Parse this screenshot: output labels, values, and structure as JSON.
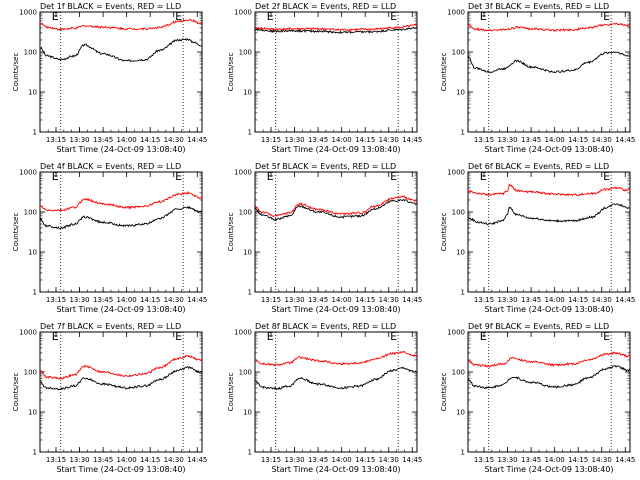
{
  "chart_data": [
    {
      "type": "line",
      "title": "Det 1f BLACK = Events, RED = LLD",
      "xlabel": "Start Time (24-Oct-09 13:08:40)",
      "ylabel": "Counts/sec",
      "yscale": "log",
      "ylim": [
        1,
        1000
      ],
      "xlim": [
        13.08,
        14.8
      ],
      "x_ticks": [
        "13:15",
        "13:30",
        "13:45",
        "14:00",
        "14:15",
        "14:30",
        "14:45"
      ],
      "y_ticks": [
        "1",
        "10",
        "100",
        "1000"
      ],
      "markers": [
        {
          "label": "E",
          "x": 13.3
        },
        {
          "label": "E",
          "x": 14.6
        }
      ],
      "series": [
        {
          "color": "#000000",
          "x": [
            13.08,
            13.15,
            13.3,
            13.45,
            13.55,
            13.75,
            14.0,
            14.2,
            14.35,
            14.55,
            14.65,
            14.7,
            14.78
          ],
          "values": [
            130,
            80,
            65,
            80,
            150,
            90,
            60,
            65,
            110,
            200,
            210,
            180,
            150
          ]
        },
        {
          "color": "#ff0000",
          "x": [
            13.08,
            13.15,
            13.3,
            13.45,
            13.55,
            13.75,
            14.0,
            14.2,
            14.35,
            14.55,
            14.65,
            14.7,
            14.78
          ],
          "values": [
            530,
            420,
            370,
            390,
            450,
            420,
            380,
            380,
            410,
            580,
            640,
            610,
            520
          ]
        }
      ]
    },
    {
      "type": "line",
      "title": "Det 2f BLACK = Events, RED = LLD",
      "xlabel": "Start Time (24-Oct-09 13:08:40)",
      "ylabel": "Counts/sec",
      "yscale": "log",
      "ylim": [
        1,
        1000
      ],
      "xlim": [
        13.08,
        14.8
      ],
      "x_ticks": [
        "13:15",
        "13:30",
        "13:45",
        "14:00",
        "14:15",
        "14:30",
        "14:45"
      ],
      "y_ticks": [
        "1",
        "10",
        "100",
        "1000"
      ],
      "markers": [
        {
          "label": "E",
          "x": 13.3
        },
        {
          "label": "E",
          "x": 14.6
        }
      ],
      "series": [
        {
          "color": "#000000",
          "x": [
            13.08,
            13.3,
            13.5,
            13.75,
            14.0,
            14.3,
            14.6,
            14.78
          ],
          "values": [
            370,
            330,
            340,
            330,
            310,
            320,
            360,
            400
          ]
        },
        {
          "color": "#ff0000",
          "x": [
            13.08,
            13.3,
            13.5,
            13.75,
            14.0,
            14.3,
            14.6,
            14.78
          ],
          "values": [
            400,
            370,
            380,
            380,
            360,
            370,
            410,
            460
          ]
        }
      ]
    },
    {
      "type": "line",
      "title": "Det 3f BLACK = Events, RED = LLD",
      "xlabel": "Start Time (24-Oct-09 13:08:40)",
      "ylabel": "Counts/sec",
      "yscale": "log",
      "ylim": [
        1,
        1000
      ],
      "xlim": [
        13.08,
        14.8
      ],
      "x_ticks": [
        "13:15",
        "13:30",
        "13:45",
        "14:00",
        "14:15",
        "14:30",
        "14:45"
      ],
      "y_ticks": [
        "1",
        "10",
        "100",
        "1000"
      ],
      "markers": [
        {
          "label": "E",
          "x": 13.3
        },
        {
          "label": "E",
          "x": 14.6
        }
      ],
      "series": [
        {
          "color": "#000000",
          "x": [
            13.08,
            13.15,
            13.3,
            13.45,
            13.6,
            13.75,
            14.0,
            14.2,
            14.35,
            14.55,
            14.65,
            14.78
          ],
          "values": [
            80,
            40,
            32,
            38,
            60,
            42,
            32,
            35,
            55,
            95,
            100,
            80
          ]
        },
        {
          "color": "#ff0000",
          "x": [
            13.08,
            13.15,
            13.3,
            13.45,
            13.6,
            13.75,
            14.0,
            14.2,
            14.35,
            14.55,
            14.65,
            14.78
          ],
          "values": [
            470,
            370,
            350,
            360,
            410,
            380,
            350,
            360,
            400,
            480,
            520,
            460
          ]
        }
      ]
    },
    {
      "type": "line",
      "title": "Det 4f BLACK = Events, RED = LLD",
      "xlabel": "Start Time (24-Oct-09 13:08:40)",
      "ylabel": "Counts/sec",
      "yscale": "log",
      "ylim": [
        1,
        1000
      ],
      "xlim": [
        13.08,
        14.8
      ],
      "x_ticks": [
        "13:15",
        "13:30",
        "13:45",
        "14:00",
        "14:15",
        "14:30",
        "14:45"
      ],
      "y_ticks": [
        "1",
        "10",
        "100",
        "1000"
      ],
      "markers": [
        {
          "label": "E",
          "x": 13.3
        },
        {
          "label": "E",
          "x": 14.6
        }
      ],
      "series": [
        {
          "color": "#000000",
          "x": [
            13.08,
            13.15,
            13.3,
            13.45,
            13.55,
            13.75,
            14.0,
            14.2,
            14.35,
            14.55,
            14.65,
            14.78
          ],
          "values": [
            65,
            45,
            40,
            50,
            75,
            55,
            45,
            50,
            70,
            120,
            130,
            100
          ]
        },
        {
          "color": "#ff0000",
          "x": [
            13.08,
            13.15,
            13.3,
            13.45,
            13.55,
            13.75,
            14.0,
            14.2,
            14.35,
            14.55,
            14.65,
            14.78
          ],
          "values": [
            140,
            110,
            110,
            130,
            210,
            160,
            130,
            140,
            180,
            280,
            300,
            230
          ]
        }
      ]
    },
    {
      "type": "line",
      "title": "Det 5f BLACK = Events, RED = LLD",
      "xlabel": "Start Time (24-Oct-09 13:08:40)",
      "ylabel": "Counts/sec",
      "yscale": "log",
      "ylim": [
        1,
        1000
      ],
      "xlim": [
        13.08,
        14.8
      ],
      "x_ticks": [
        "13:15",
        "13:30",
        "13:45",
        "14:00",
        "14:15",
        "14:30",
        "14:45"
      ],
      "y_ticks": [
        "1",
        "10",
        "100",
        "1000"
      ],
      "markers": [
        {
          "label": "E",
          "x": 13.3
        },
        {
          "label": "E",
          "x": 14.6
        }
      ],
      "series": [
        {
          "color": "#000000",
          "x": [
            13.08,
            13.15,
            13.3,
            13.45,
            13.55,
            13.75,
            14.0,
            14.2,
            14.35,
            14.55,
            14.65,
            14.78
          ],
          "values": [
            120,
            85,
            65,
            80,
            140,
            100,
            75,
            80,
            120,
            190,
            200,
            160
          ]
        },
        {
          "color": "#ff0000",
          "x": [
            13.08,
            13.15,
            13.3,
            13.45,
            13.55,
            13.75,
            14.0,
            14.2,
            14.35,
            14.55,
            14.65,
            14.78
          ],
          "values": [
            140,
            100,
            80,
            95,
            160,
            115,
            90,
            95,
            140,
            220,
            240,
            190
          ]
        }
      ]
    },
    {
      "type": "line",
      "title": "Det 6f BLACK = Events, RED = LLD",
      "xlabel": "Start Time (24-Oct-09 13:08:40)",
      "ylabel": "Counts/sec",
      "yscale": "log",
      "ylim": [
        1,
        1000
      ],
      "xlim": [
        13.08,
        14.8
      ],
      "x_ticks": [
        "13:15",
        "13:30",
        "13:45",
        "14:00",
        "14:15",
        "14:30",
        "14:45"
      ],
      "y_ticks": [
        "1",
        "10",
        "100",
        "1000"
      ],
      "markers": [
        {
          "label": "E",
          "x": 13.3
        },
        {
          "label": "E",
          "x": 14.6
        }
      ],
      "series": [
        {
          "color": "#000000",
          "x": [
            13.08,
            13.2,
            13.3,
            13.45,
            13.5,
            13.52,
            13.6,
            13.75,
            14.0,
            14.2,
            14.4,
            14.55,
            14.65,
            14.78
          ],
          "values": [
            70,
            55,
            50,
            60,
            90,
            130,
            85,
            70,
            60,
            60,
            75,
            130,
            160,
            130
          ]
        },
        {
          "color": "#ff0000",
          "x": [
            13.08,
            13.2,
            13.3,
            13.45,
            13.5,
            13.52,
            13.6,
            13.75,
            14.0,
            14.2,
            14.4,
            14.55,
            14.65,
            14.78
          ],
          "values": [
            330,
            290,
            270,
            290,
            340,
            480,
            340,
            320,
            280,
            270,
            290,
            370,
            400,
            350
          ]
        }
      ]
    },
    {
      "type": "line",
      "title": "Det 7f BLACK = Events, RED = LLD",
      "xlabel": "Start Time (24-Oct-09 13:08:40)",
      "ylabel": "Counts/sec",
      "yscale": "log",
      "ylim": [
        1,
        1000
      ],
      "xlim": [
        13.08,
        14.8
      ],
      "x_ticks": [
        "13:15",
        "13:30",
        "13:45",
        "14:00",
        "14:15",
        "14:30",
        "14:45"
      ],
      "y_ticks": [
        "1",
        "10",
        "100",
        "1000"
      ],
      "markers": [
        {
          "label": "E",
          "x": 13.3
        },
        {
          "label": "E",
          "x": 14.6
        }
      ],
      "series": [
        {
          "color": "#000000",
          "x": [
            13.08,
            13.15,
            13.3,
            13.45,
            13.55,
            13.75,
            14.0,
            14.2,
            14.35,
            14.55,
            14.65,
            14.78
          ],
          "values": [
            55,
            40,
            38,
            45,
            70,
            50,
            40,
            45,
            65,
            110,
            130,
            100
          ]
        },
        {
          "color": "#ff0000",
          "x": [
            13.08,
            13.15,
            13.3,
            13.45,
            13.55,
            13.75,
            14.0,
            14.2,
            14.35,
            14.55,
            14.65,
            14.78
          ],
          "values": [
            110,
            75,
            70,
            85,
            140,
            100,
            80,
            90,
            130,
            220,
            250,
            200
          ]
        }
      ]
    },
    {
      "type": "line",
      "title": "Det 8f BLACK = Events, RED = LLD",
      "xlabel": "Start Time (24-Oct-09 13:08:40)",
      "ylabel": "Counts/sec",
      "yscale": "log",
      "ylim": [
        1,
        1000
      ],
      "xlim": [
        13.08,
        14.8
      ],
      "x_ticks": [
        "13:15",
        "13:30",
        "13:45",
        "14:00",
        "14:15",
        "14:30",
        "14:45"
      ],
      "y_ticks": [
        "1",
        "10",
        "100",
        "1000"
      ],
      "markers": [
        {
          "label": "E",
          "x": 13.3
        },
        {
          "label": "E",
          "x": 14.6
        }
      ],
      "series": [
        {
          "color": "#000000",
          "x": [
            13.08,
            13.15,
            13.3,
            13.45,
            13.55,
            13.75,
            14.0,
            14.2,
            14.35,
            14.55,
            14.65,
            14.78
          ],
          "values": [
            60,
            42,
            38,
            45,
            70,
            50,
            40,
            45,
            65,
            110,
            125,
            100
          ]
        },
        {
          "color": "#ff0000",
          "x": [
            13.08,
            13.15,
            13.3,
            13.45,
            13.55,
            13.75,
            14.0,
            14.2,
            14.35,
            14.55,
            14.65,
            14.78
          ],
          "values": [
            200,
            160,
            150,
            170,
            230,
            190,
            160,
            170,
            210,
            290,
            310,
            260
          ]
        }
      ]
    },
    {
      "type": "line",
      "title": "Det 9f BLACK = Events, RED = LLD",
      "xlabel": "Start Time (24-Oct-09 13:08:40)",
      "ylabel": "Counts/sec",
      "yscale": "log",
      "ylim": [
        1,
        1000
      ],
      "xlim": [
        13.08,
        14.8
      ],
      "x_ticks": [
        "13:15",
        "13:30",
        "13:45",
        "14:00",
        "14:15",
        "14:30",
        "14:45"
      ],
      "y_ticks": [
        "1",
        "10",
        "100",
        "1000"
      ],
      "markers": [
        {
          "label": "E",
          "x": 13.3
        },
        {
          "label": "E",
          "x": 14.6
        }
      ],
      "series": [
        {
          "color": "#000000",
          "x": [
            13.08,
            13.15,
            13.3,
            13.45,
            13.55,
            13.75,
            14.0,
            14.2,
            14.35,
            14.55,
            14.65,
            14.78
          ],
          "values": [
            65,
            45,
            40,
            48,
            75,
            55,
            42,
            48,
            70,
            120,
            140,
            110
          ]
        },
        {
          "color": "#ff0000",
          "x": [
            13.08,
            13.15,
            13.3,
            13.45,
            13.55,
            13.75,
            14.0,
            14.2,
            14.35,
            14.55,
            14.65,
            14.78
          ],
          "values": [
            190,
            150,
            140,
            160,
            220,
            180,
            150,
            160,
            200,
            280,
            300,
            250
          ]
        }
      ]
    }
  ]
}
